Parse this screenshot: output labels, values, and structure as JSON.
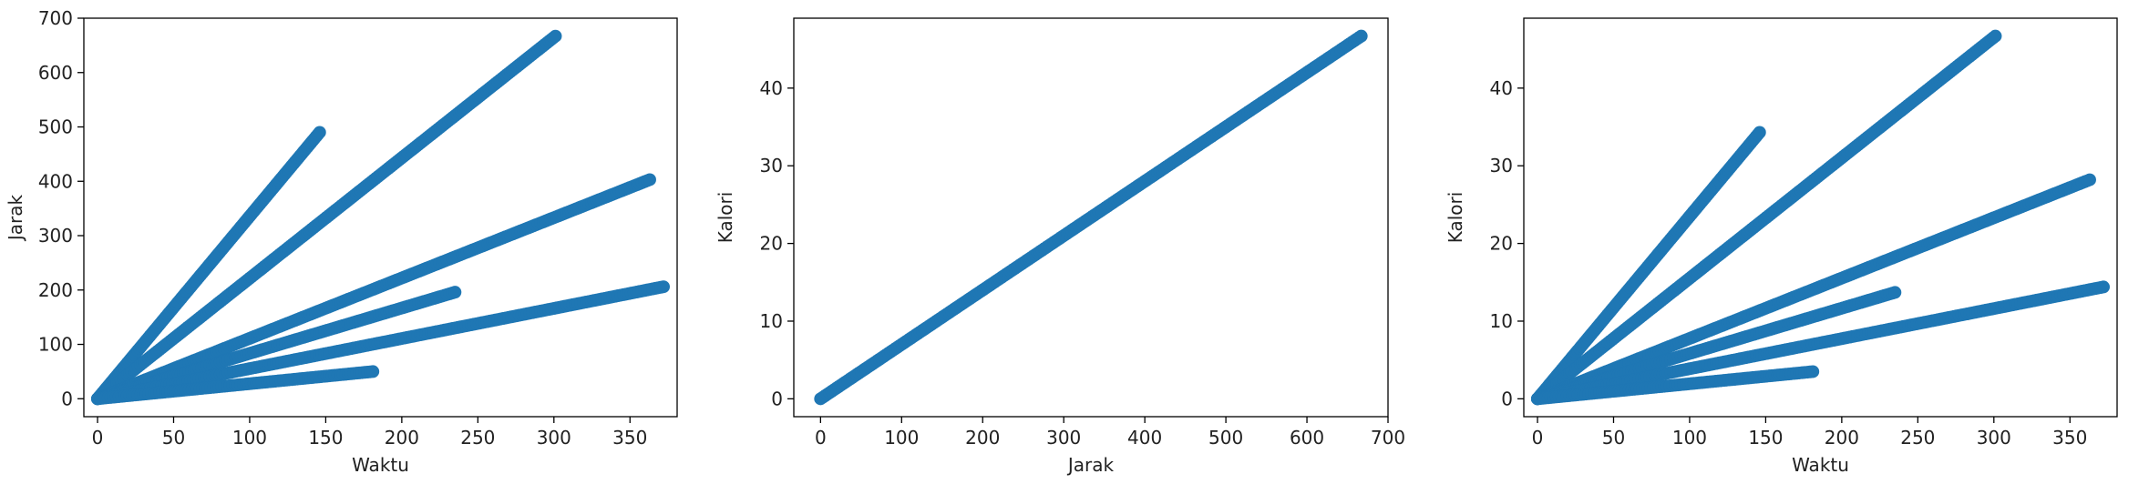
{
  "figure": {
    "background": "#ffffff",
    "point_color": "#1f77b4"
  },
  "chart_data": [
    {
      "type": "scatter",
      "title": "",
      "xlabel": "Waktu",
      "ylabel": "Jarak",
      "xlim": [
        -9,
        381
      ],
      "ylim": [
        -33,
        700
      ],
      "xticks": [
        0,
        50,
        100,
        150,
        200,
        250,
        300,
        350
      ],
      "yticks": [
        0,
        100,
        200,
        300,
        400,
        500,
        600,
        700
      ],
      "grid": false,
      "series": [
        {
          "x0": 0,
          "y0": 0,
          "x1": 146,
          "y1": 490
        },
        {
          "x0": 0,
          "y0": 0,
          "x1": 301,
          "y1": 667
        },
        {
          "x0": 0,
          "y0": 0,
          "x1": 363,
          "y1": 403
        },
        {
          "x0": 0,
          "y0": 0,
          "x1": 235,
          "y1": 196
        },
        {
          "x0": 0,
          "y0": 0,
          "x1": 372,
          "y1": 206
        },
        {
          "x0": 0,
          "y0": 0,
          "x1": 181,
          "y1": 50
        }
      ]
    },
    {
      "type": "scatter",
      "title": "",
      "xlabel": "Jarak",
      "ylabel": "Kalori",
      "xlim": [
        -33,
        700
      ],
      "ylim": [
        -2.3,
        49
      ],
      "xticks": [
        0,
        100,
        200,
        300,
        400,
        500,
        600,
        700
      ],
      "yticks": [
        0,
        10,
        20,
        30,
        40
      ],
      "grid": false,
      "series": [
        {
          "x0": 0,
          "y0": 0,
          "x1": 667,
          "y1": 46.7
        }
      ]
    },
    {
      "type": "scatter",
      "title": "",
      "xlabel": "Waktu",
      "ylabel": "Kalori",
      "xlim": [
        -9,
        381
      ],
      "ylim": [
        -2.3,
        49
      ],
      "xticks": [
        0,
        50,
        100,
        150,
        200,
        250,
        300,
        350
      ],
      "yticks": [
        0,
        10,
        20,
        30,
        40
      ],
      "grid": false,
      "series": [
        {
          "x0": 0,
          "y0": 0,
          "x1": 146,
          "y1": 34.3
        },
        {
          "x0": 0,
          "y0": 0,
          "x1": 301,
          "y1": 46.7
        },
        {
          "x0": 0,
          "y0": 0,
          "x1": 363,
          "y1": 28.2
        },
        {
          "x0": 0,
          "y0": 0,
          "x1": 235,
          "y1": 13.7
        },
        {
          "x0": 0,
          "y0": 0,
          "x1": 372,
          "y1": 14.4
        },
        {
          "x0": 0,
          "y0": 0,
          "x1": 181,
          "y1": 3.5
        }
      ]
    }
  ]
}
